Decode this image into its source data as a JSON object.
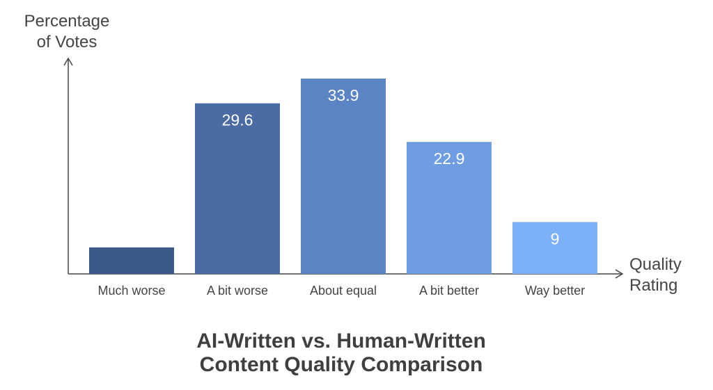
{
  "chart_data": {
    "type": "bar",
    "title": "AI-Written vs. Human-Written",
    "subtitle": "Content Quality Comparison",
    "ylabel": "Percentage of Votes",
    "xlabel": "Quality Rating",
    "categories": [
      "Much worse",
      "A bit worse",
      "About equal",
      "A bit better",
      "Way better"
    ],
    "values": [
      4.6,
      29.6,
      33.9,
      22.9,
      9
    ],
    "data_labels": [
      "",
      "29.6",
      "33.9",
      "22.9",
      "9"
    ],
    "colors": [
      "#3b5a8a",
      "#4a6ba4",
      "#5b84c4",
      "#6e9de2",
      "#7cb0f7"
    ],
    "ylim": [
      0,
      36
    ],
    "grid": false,
    "legend": "none"
  }
}
